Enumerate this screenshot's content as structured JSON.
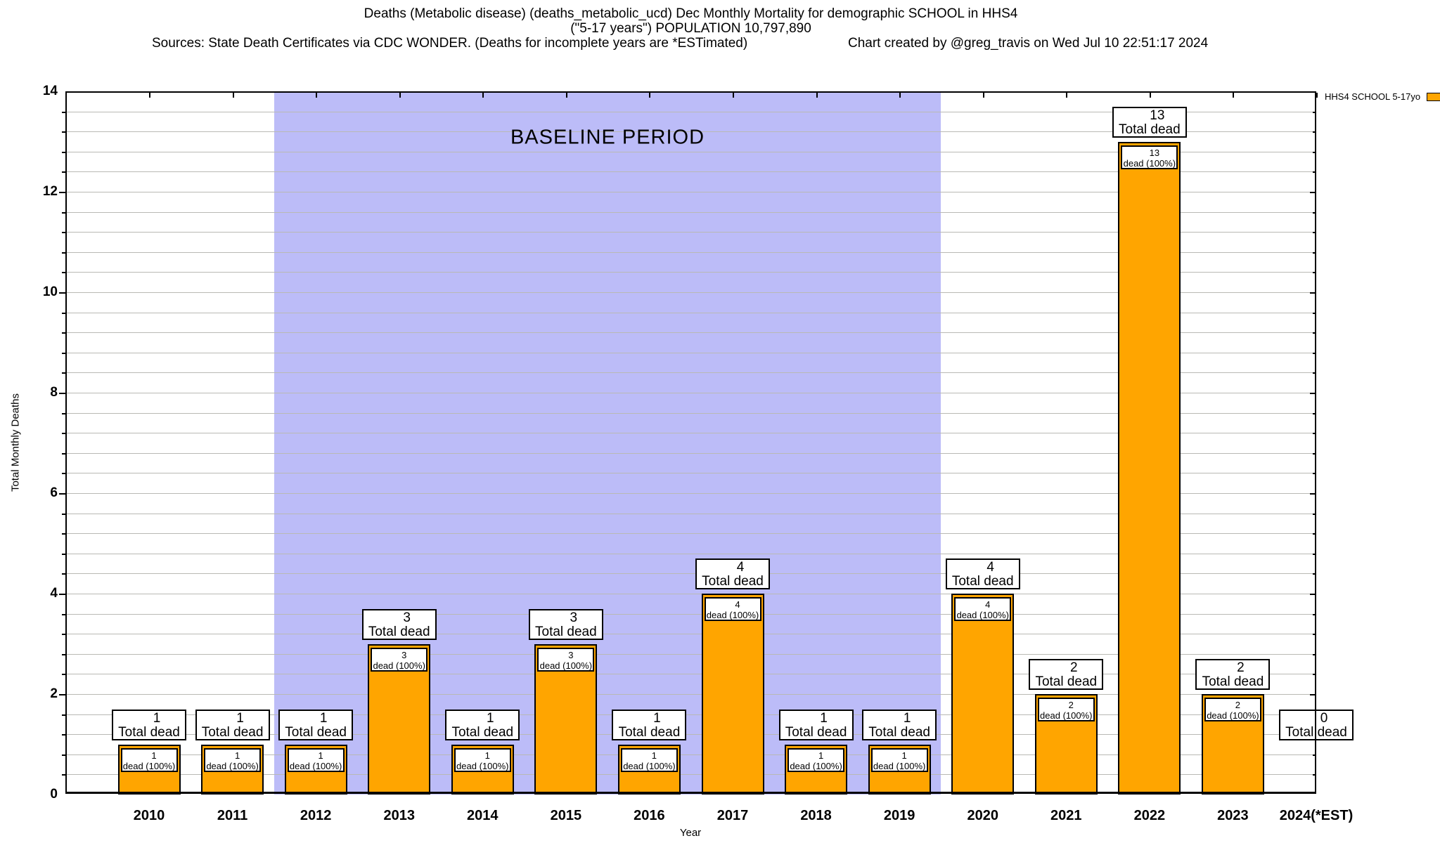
{
  "header": {
    "title_line1": "Deaths (Metabolic disease) (deaths_metabolic_ucd) Dec Monthly Mortality for demographic SCHOOL in HHS4",
    "title_line2": "(\"5-17 years\") POPULATION 10,797,890",
    "sources": "Sources: State Death Certificates via CDC WONDER. (Deaths for incomplete years are *ESTimated)",
    "credit": "Chart created by @greg_travis on Wed Jul 10 22:51:17 2024"
  },
  "legend": {
    "label": "HHS4 SCHOOL 5-17yo",
    "swatch_color": "#FFA500"
  },
  "chart_data": {
    "type": "bar",
    "title": "Deaths (Metabolic disease) (deaths_metabolic_ucd) Dec Monthly Mortality for demographic SCHOOL in HHS4 (\"5-17 years\") POPULATION 10,797,890",
    "xlabel": "Year",
    "ylabel": "Total Monthly Deaths",
    "ylim": [
      0,
      14
    ],
    "ytick_step": 2,
    "minor_ytick_step": 0.4,
    "grid": true,
    "legend_position": "top-right-outside",
    "bar_color": "#FFA500",
    "categories": [
      "2010",
      "2011",
      "2012",
      "2013",
      "2014",
      "2015",
      "2016",
      "2017",
      "2018",
      "2019",
      "2020",
      "2021",
      "2022",
      "2023",
      "2024(*EST)"
    ],
    "values": [
      1,
      1,
      1,
      3,
      1,
      3,
      1,
      4,
      1,
      1,
      4,
      2,
      13,
      2,
      0
    ],
    "series": [
      {
        "name": "HHS4 SCHOOL 5-17yo",
        "values": [
          1,
          1,
          1,
          3,
          1,
          3,
          1,
          4,
          1,
          1,
          4,
          2,
          13,
          2,
          0
        ]
      }
    ],
    "bar_top_label_suffix": "Total dead",
    "bar_inner_label_suffix": "dead (100%)",
    "baseline_band": {
      "label": "BASELINE PERIOD",
      "x_start": 2011.5,
      "x_end": 2019.5,
      "color": "#bcbcf8"
    }
  }
}
